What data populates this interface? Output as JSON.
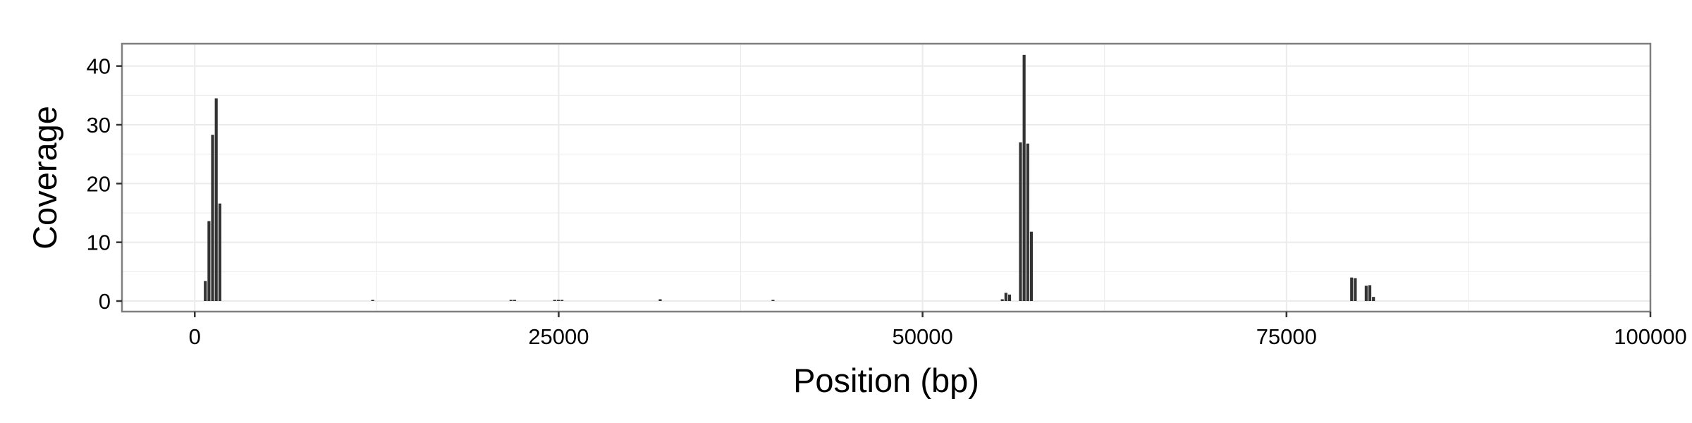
{
  "chart_data": {
    "type": "bar",
    "title": "",
    "xlabel": "Position (bp)",
    "ylabel": "Coverage",
    "xlim": [
      -5000,
      100000
    ],
    "ylim": [
      -1.8,
      43.8
    ],
    "x_ticks": [
      0,
      25000,
      50000,
      75000,
      100000
    ],
    "x_tick_labels": [
      "0",
      "25000",
      "50000",
      "75000",
      "100000"
    ],
    "y_ticks": [
      0,
      10,
      20,
      30,
      40
    ],
    "y_tick_labels": [
      "0",
      "10",
      "20",
      "30",
      "40"
    ],
    "grid": true,
    "legend": "none",
    "bin_width": 250,
    "bar_color": "#333333",
    "panel_border_color": "#7f7f7f",
    "grid_color": "#ebebeb",
    "x": [
      750,
      1000,
      1250,
      1500,
      1750,
      12250,
      21750,
      22000,
      24750,
      25000,
      25250,
      32000,
      39750,
      55500,
      55750,
      56000,
      56750,
      57000,
      57250,
      57500,
      79500,
      79750,
      80500,
      80750,
      81000
    ],
    "values": [
      3.4,
      13.6,
      28.3,
      34.5,
      16.6,
      0.2,
      0.2,
      0.2,
      0.2,
      0.2,
      0.2,
      0.3,
      0.2,
      0.3,
      1.4,
      1.1,
      27.0,
      41.9,
      26.8,
      11.8,
      4.0,
      3.9,
      2.6,
      2.7,
      0.7
    ]
  }
}
